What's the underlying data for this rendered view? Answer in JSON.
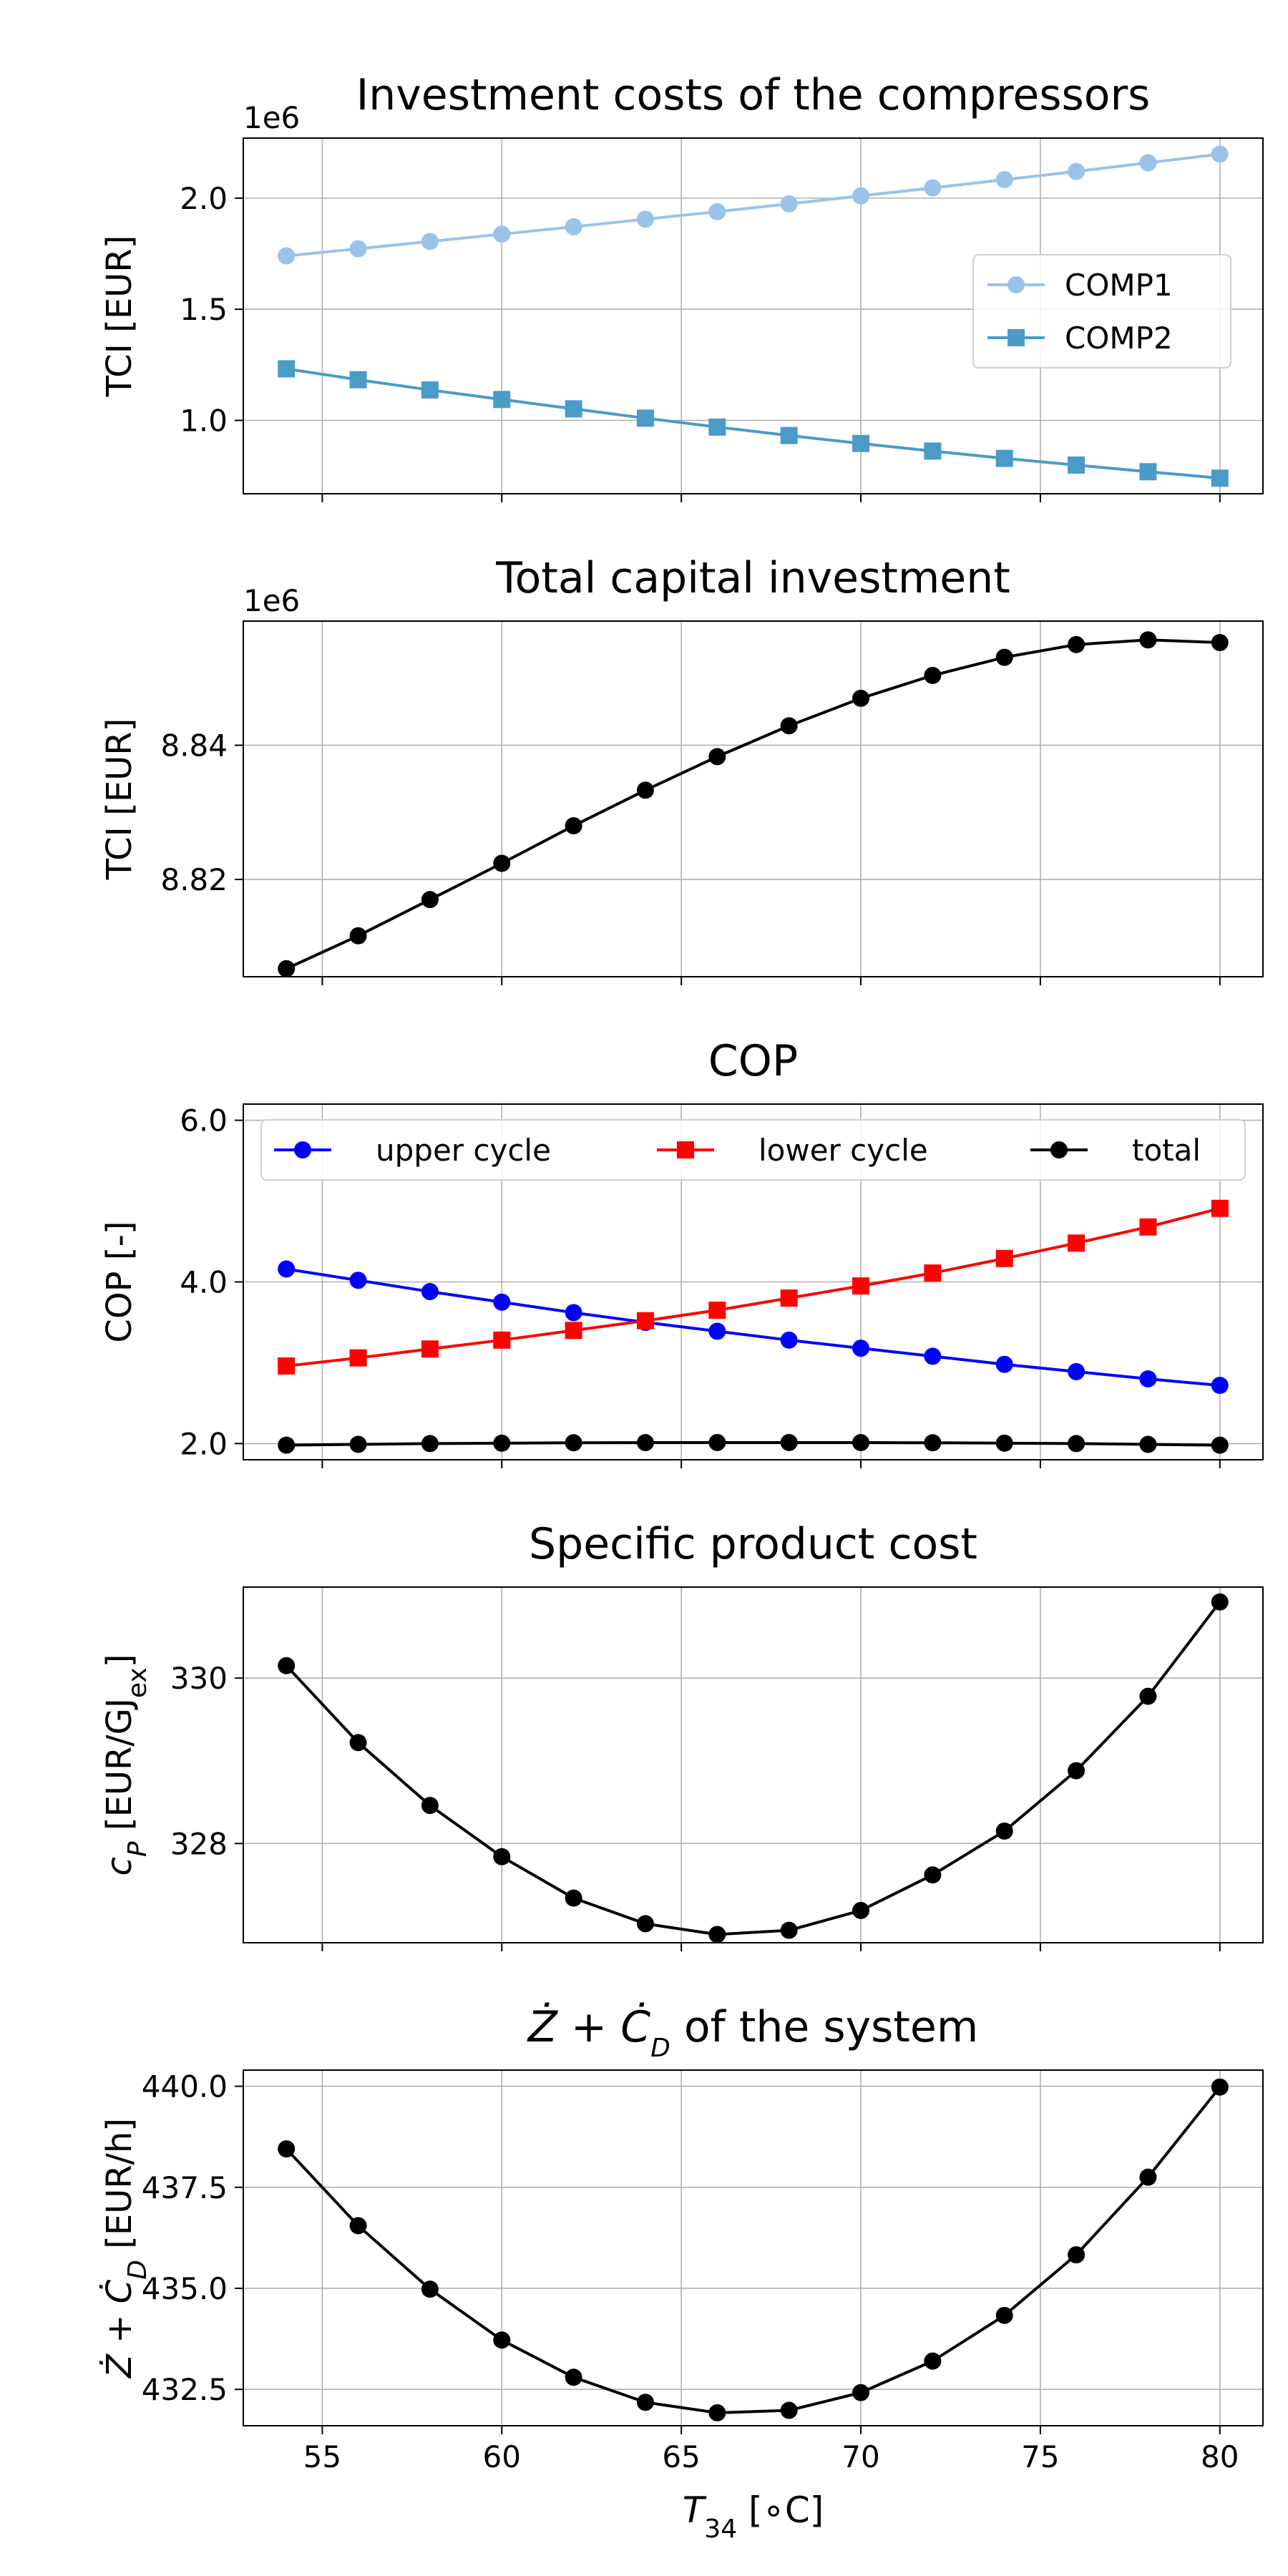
{
  "chart_data": [
    {
      "type": "line",
      "title": "Investment costs of the compressors",
      "ylabel": "TCI [EUR]",
      "offset_label": "1e6",
      "x": [
        54,
        56,
        58,
        60,
        62,
        64,
        66,
        68,
        70,
        72,
        74,
        76,
        78,
        80
      ],
      "xlim": [
        52.8,
        81.2
      ],
      "ylim": [
        0.67,
        2.27
      ],
      "yticks": [
        1.0,
        1.5,
        2.0
      ],
      "ytick_labels": [
        "1.0",
        "1.5",
        "2.0"
      ],
      "legend": "right",
      "grid": true,
      "series": [
        {
          "name": "COMP1",
          "marker": "circle",
          "color": "#99c3e8",
          "values": [
            1.74,
            1.772,
            1.805,
            1.838,
            1.871,
            1.905,
            1.939,
            1.974,
            2.01,
            2.046,
            2.083,
            2.12,
            2.159,
            2.198
          ]
        },
        {
          "name": "COMP2",
          "marker": "square",
          "color": "#4a9bc8",
          "values": [
            1.232,
            1.183,
            1.137,
            1.094,
            1.052,
            1.01,
            0.97,
            0.932,
            0.896,
            0.862,
            0.829,
            0.799,
            0.769,
            0.74
          ]
        }
      ]
    },
    {
      "type": "line",
      "title": "Total capital investment",
      "ylabel": "TCI [EUR]",
      "offset_label": "1e6",
      "x": [
        54,
        56,
        58,
        60,
        62,
        64,
        66,
        68,
        70,
        72,
        74,
        76,
        78,
        80
      ],
      "xlim": [
        52.8,
        81.2
      ],
      "ylim": [
        8.8055,
        8.8585
      ],
      "yticks": [
        8.82,
        8.84
      ],
      "ytick_labels": [
        "8.82",
        "8.84"
      ],
      "grid": true,
      "series": [
        {
          "name": "",
          "marker": "circle",
          "color": "#000000",
          "values": [
            8.8067,
            8.8116,
            8.817,
            8.8224,
            8.828,
            8.8333,
            8.8383,
            8.8429,
            8.847,
            8.8504,
            8.8531,
            8.855,
            8.8557,
            8.8553
          ]
        }
      ]
    },
    {
      "type": "line",
      "title": "COP",
      "ylabel": "COP [-]",
      "x": [
        54,
        56,
        58,
        60,
        62,
        64,
        66,
        68,
        70,
        72,
        74,
        76,
        78,
        80
      ],
      "xlim": [
        52.8,
        81.2
      ],
      "ylim": [
        1.8,
        6.2
      ],
      "yticks": [
        2.0,
        4.0,
        6.0
      ],
      "ytick_labels": [
        "2.0",
        "4.0",
        "6.0"
      ],
      "legend": "top",
      "grid": true,
      "series": [
        {
          "name": "upper cycle",
          "marker": "circle",
          "color": "#0000ff",
          "values": [
            4.16,
            4.02,
            3.88,
            3.75,
            3.62,
            3.5,
            3.39,
            3.28,
            3.18,
            3.08,
            2.98,
            2.89,
            2.8,
            2.72
          ]
        },
        {
          "name": "lower cycle",
          "marker": "square",
          "color": "#ff0000",
          "values": [
            2.96,
            3.06,
            3.17,
            3.28,
            3.4,
            3.52,
            3.65,
            3.8,
            3.95,
            4.11,
            4.29,
            4.48,
            4.68,
            4.91
          ]
        },
        {
          "name": "total",
          "marker": "circle",
          "color": "#000000",
          "values": [
            1.98,
            1.99,
            2.0,
            2.005,
            2.01,
            2.012,
            2.013,
            2.013,
            2.012,
            2.01,
            2.005,
            2.0,
            1.99,
            1.98
          ]
        }
      ]
    },
    {
      "type": "line",
      "title": "Specific product cost",
      "ylabel": "c_P [EUR/GJ_ex]",
      "x": [
        54,
        56,
        58,
        60,
        62,
        64,
        66,
        68,
        70,
        72,
        74,
        76,
        78,
        80
      ],
      "xlim": [
        52.8,
        81.2
      ],
      "ylim": [
        326.8,
        331.1
      ],
      "yticks": [
        328,
        330
      ],
      "ytick_labels": [
        "328",
        "330"
      ],
      "grid": true,
      "series": [
        {
          "name": "",
          "marker": "circle",
          "color": "#000000",
          "values": [
            330.15,
            329.22,
            328.46,
            327.84,
            327.34,
            327.03,
            326.9,
            326.95,
            327.19,
            327.62,
            328.15,
            328.88,
            329.78,
            330.92
          ]
        }
      ]
    },
    {
      "type": "line",
      "title": "Ż + Ċ_D of the system",
      "ylabel": "Ż + Ċ_D [EUR/h]",
      "xlabel": "T_34 [°C]",
      "x": [
        54,
        56,
        58,
        60,
        62,
        64,
        66,
        68,
        70,
        72,
        74,
        76,
        78,
        80
      ],
      "xlim": [
        52.8,
        81.2
      ],
      "ylim": [
        431.6,
        440.4
      ],
      "xticks": [
        55,
        60,
        65,
        70,
        75,
        80
      ],
      "xtick_labels": [
        "55",
        "60",
        "65",
        "70",
        "75",
        "80"
      ],
      "yticks": [
        432.5,
        435.0,
        437.5,
        440.0
      ],
      "ytick_labels": [
        "432.5",
        "435.0",
        "437.5",
        "440.0"
      ],
      "grid": true,
      "series": [
        {
          "name": "",
          "marker": "circle",
          "color": "#000000",
          "values": [
            438.45,
            436.55,
            434.98,
            433.72,
            432.8,
            432.18,
            431.92,
            431.98,
            432.42,
            433.2,
            434.33,
            435.83,
            437.75,
            439.98
          ]
        }
      ]
    }
  ]
}
